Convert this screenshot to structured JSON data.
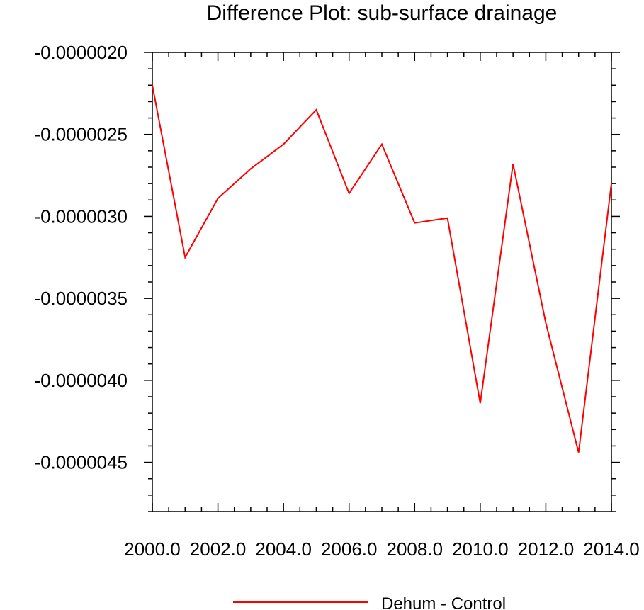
{
  "chart_data": {
    "type": "line",
    "title": "Difference Plot: sub-surface drainage",
    "xlabel": "",
    "ylabel": "",
    "xlim": [
      2000,
      2014
    ],
    "ylim": [
      -4.8e-06,
      -2e-06
    ],
    "x_ticks": [
      2000,
      2002,
      2004,
      2006,
      2008,
      2010,
      2012,
      2014
    ],
    "x_tick_labels": [
      "2000.0",
      "2002.0",
      "2004.0",
      "2006.0",
      "2008.0",
      "2010.0",
      "2012.0",
      "2014.0"
    ],
    "y_ticks": [
      -2e-06,
      -2.5e-06,
      -3e-06,
      -3.5e-06,
      -4e-06,
      -4.5e-06
    ],
    "y_tick_labels": [
      "-0.0000020",
      "-0.0000025",
      "-0.0000030",
      "-0.0000035",
      "-0.0000040",
      "-0.0000045"
    ],
    "grid": false,
    "legend_position": "bottom-center",
    "series": [
      {
        "name": "Dehum - Control",
        "color": "#ff0000",
        "x": [
          2000,
          2001,
          2002,
          2003,
          2004,
          2005,
          2006,
          2007,
          2008,
          2009,
          2010,
          2011,
          2012,
          2013,
          2014
        ],
        "values": [
          -2.2e-06,
          -3.25e-06,
          -2.89e-06,
          -2.71e-06,
          -2.56e-06,
          -2.35e-06,
          -2.86e-06,
          -2.56e-06,
          -3.04e-06,
          -3.01e-06,
          -4.14e-06,
          -2.68e-06,
          -3.65e-06,
          -4.44e-06,
          -2.8e-06
        ]
      }
    ]
  }
}
